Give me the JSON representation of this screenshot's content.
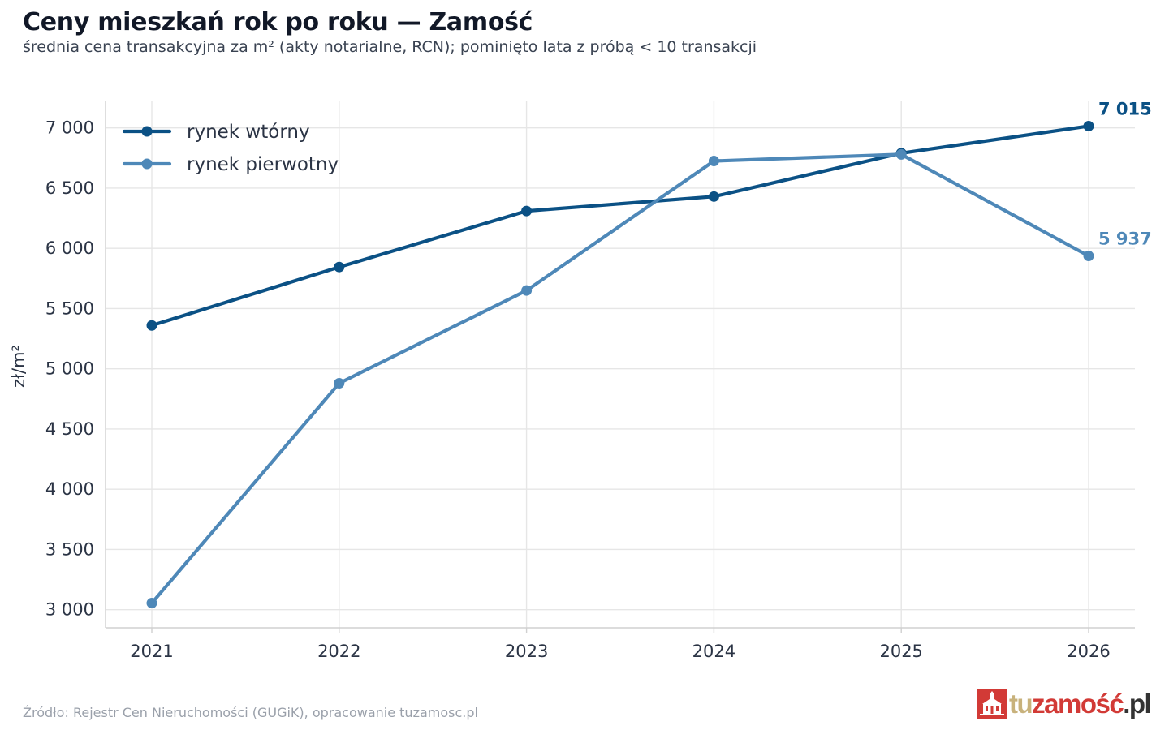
{
  "chart_data": {
    "type": "line",
    "title": "Ceny mieszkań rok po roku — Zamość",
    "subtitle": "średnia cena transakcyjna za m² (akty notarialne, RCN); pominięto lata z próbą < 10 transakcji",
    "xlabel": "",
    "ylabel": "zł/m²",
    "x": [
      2021,
      2022,
      2023,
      2024,
      2025,
      2026
    ],
    "x_tick_labels": [
      "2021",
      "2022",
      "2023",
      "2024",
      "2025",
      "2026"
    ],
    "ylim": [
      2850,
      7220
    ],
    "y_ticks": [
      3000,
      3500,
      4000,
      4500,
      5000,
      5500,
      6000,
      6500,
      7000
    ],
    "y_tick_labels": [
      "3 000",
      "3 500",
      "4 000",
      "4 500",
      "5 000",
      "5 500",
      "6 000",
      "6 500",
      "7 000"
    ],
    "grid": true,
    "legend_position": "top-left",
    "series": [
      {
        "name": "rynek wtórny",
        "color": "#0b5185",
        "values": [
          5360,
          5845,
          6310,
          6430,
          6790,
          7015
        ],
        "end_label": "7 015"
      },
      {
        "name": "rynek pierwotny",
        "color": "#4e88b8",
        "values": [
          3055,
          4880,
          5650,
          6725,
          6780,
          5937
        ],
        "end_label": "5 937"
      }
    ]
  },
  "footer": {
    "source": "Źródło: Rejestr Cen Nieruchomości (GUGiK), opracowanie tuzamosc.pl",
    "logo_tu": "tu",
    "logo_zamosc": "zamość",
    "logo_pl": ".pl"
  },
  "colors": {
    "grid": "#e6e6e6",
    "axis": "#d0d0d0",
    "logo_red": "#d23a36",
    "logo_gold": "#c8b27c"
  }
}
